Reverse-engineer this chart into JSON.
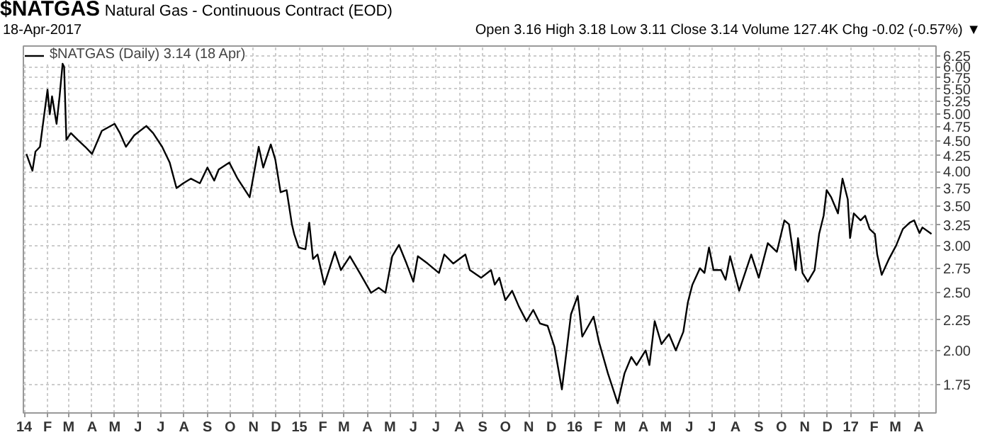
{
  "chart_data": {
    "type": "line",
    "title": "$NATGAS",
    "subtitle": "Natural Gas - Continuous Contract (EOD)",
    "annotations": [
      "18-Apr-2017",
      "Open 3.16 High 3.18 Low 3.11 Close 3.14 Volume 127.4K Chg -0.02 (-0.57%) ▼"
    ],
    "x": [
      "2014-01-04",
      "2014-01-12",
      "2014-01-16",
      "2014-01-22",
      "2014-01-26",
      "2014-02-01",
      "2014-02-04",
      "2014-02-07",
      "2014-02-13",
      "2014-02-17",
      "2014-02-21",
      "2014-02-23",
      "2014-02-26",
      "2014-03-04",
      "2014-03-13",
      "2014-03-23",
      "2014-04-01",
      "2014-04-14",
      "2014-05-01",
      "2014-05-08",
      "2014-05-16",
      "2014-05-27",
      "2014-06-12",
      "2014-06-21",
      "2014-07-03",
      "2014-07-13",
      "2014-07-22",
      "2014-07-31",
      "2014-08-10",
      "2014-08-22",
      "2014-09-01",
      "2014-09-10",
      "2014-09-16",
      "2014-09-30",
      "2014-10-11",
      "2014-10-27",
      "2014-11-08",
      "2014-11-14",
      "2014-11-24",
      "2014-11-30",
      "2014-12-07",
      "2014-12-15",
      "2014-12-22",
      "2014-12-25",
      "2014-12-31",
      "2015-01-09",
      "2015-01-14",
      "2015-01-19",
      "2015-01-25",
      "2015-02-03",
      "2015-02-17",
      "2015-02-25",
      "2015-03-09",
      "2015-03-22",
      "2015-04-06",
      "2015-04-16",
      "2015-04-25",
      "2015-05-04",
      "2015-05-13",
      "2015-05-23",
      "2015-06-01",
      "2015-06-07",
      "2015-06-20",
      "2015-07-05",
      "2015-07-12",
      "2015-07-24",
      "2015-08-09",
      "2015-08-15",
      "2015-08-30",
      "2015-09-12",
      "2015-09-17",
      "2015-09-23",
      "2015-10-01",
      "2015-10-10",
      "2015-10-19",
      "2015-10-29",
      "2015-11-07",
      "2015-11-16",
      "2015-11-26",
      "2015-12-05",
      "2015-12-15",
      "2015-12-27",
      "2016-01-05",
      "2016-01-11",
      "2016-01-26",
      "2016-02-02",
      "2016-02-14",
      "2016-02-27",
      "2016-03-07",
      "2016-03-16",
      "2016-03-23",
      "2016-04-04",
      "2016-04-09",
      "2016-04-16",
      "2016-04-25",
      "2016-05-05",
      "2016-05-14",
      "2016-05-24",
      "2016-05-30",
      "2016-06-05",
      "2016-06-15",
      "2016-06-21",
      "2016-06-27",
      "2016-07-03",
      "2016-07-13",
      "2016-07-19",
      "2016-07-25",
      "2016-08-06",
      "2016-08-22",
      "2016-09-01",
      "2016-09-13",
      "2016-09-25",
      "2016-10-05",
      "2016-10-11",
      "2016-10-20",
      "2016-10-23",
      "2016-10-29",
      "2016-11-05",
      "2016-11-14",
      "2016-11-20",
      "2016-11-26",
      "2016-11-30",
      "2016-12-06",
      "2016-12-15",
      "2016-12-21",
      "2016-12-28",
      "2016-12-31",
      "2017-01-05",
      "2017-01-14",
      "2017-01-20",
      "2017-01-26",
      "2017-02-02",
      "2017-02-05",
      "2017-02-11",
      "2017-02-20",
      "2017-03-02",
      "2017-03-11",
      "2017-03-20",
      "2017-03-26",
      "2017-04-02",
      "2017-04-06",
      "2017-04-18"
    ],
    "series": [
      {
        "name": "$NATGAS (Daily) 3.14 (18 Apr)",
        "color": "#000000",
        "values": [
          4.28,
          4.01,
          4.32,
          4.4,
          4.81,
          5.49,
          4.99,
          5.35,
          4.81,
          5.35,
          6.07,
          6.0,
          4.52,
          4.64,
          4.52,
          4.4,
          4.28,
          4.68,
          4.81,
          4.64,
          4.4,
          4.6,
          4.77,
          4.64,
          4.4,
          4.14,
          3.75,
          3.82,
          3.89,
          3.82,
          4.06,
          3.86,
          4.03,
          4.14,
          3.89,
          3.62,
          4.4,
          4.06,
          4.44,
          4.19,
          3.69,
          3.72,
          3.26,
          3.14,
          2.98,
          2.96,
          3.28,
          2.85,
          2.9,
          2.58,
          2.93,
          2.73,
          2.88,
          2.7,
          2.5,
          2.55,
          2.5,
          2.88,
          3.01,
          2.8,
          2.61,
          2.88,
          2.8,
          2.7,
          2.9,
          2.8,
          2.9,
          2.73,
          2.65,
          2.73,
          2.58,
          2.65,
          2.43,
          2.52,
          2.37,
          2.24,
          2.34,
          2.22,
          2.2,
          2.03,
          1.72,
          2.3,
          2.47,
          2.11,
          2.28,
          2.07,
          1.83,
          1.63,
          1.83,
          1.95,
          1.89,
          2.0,
          1.89,
          2.24,
          2.05,
          2.13,
          2.0,
          2.15,
          2.41,
          2.58,
          2.75,
          2.7,
          2.98,
          2.73,
          2.73,
          2.63,
          2.88,
          2.52,
          2.9,
          2.65,
          3.03,
          2.93,
          3.31,
          3.26,
          2.73,
          3.09,
          2.7,
          2.61,
          2.73,
          3.14,
          3.37,
          3.72,
          3.62,
          3.4,
          3.89,
          3.59,
          3.09,
          3.4,
          3.31,
          3.37,
          3.2,
          3.14,
          2.9,
          2.68,
          2.84,
          3.0,
          3.2,
          3.28,
          3.31,
          3.15,
          3.22,
          3.14
        ]
      }
    ],
    "xlim": [
      "2013-12-31",
      "2017-04-24"
    ],
    "xticks": [
      {
        "value": "2014-01",
        "label": "14"
      },
      {
        "value": "2014-02",
        "label": "F"
      },
      {
        "value": "2014-03",
        "label": "M"
      },
      {
        "value": "2014-04",
        "label": "A"
      },
      {
        "value": "2014-05",
        "label": "M"
      },
      {
        "value": "2014-06",
        "label": "J"
      },
      {
        "value": "2014-07",
        "label": "J"
      },
      {
        "value": "2014-08",
        "label": "A"
      },
      {
        "value": "2014-09",
        "label": "S"
      },
      {
        "value": "2014-10",
        "label": "O"
      },
      {
        "value": "2014-11",
        "label": "N"
      },
      {
        "value": "2014-12",
        "label": "D"
      },
      {
        "value": "2015-01",
        "label": "15"
      },
      {
        "value": "2015-02",
        "label": "F"
      },
      {
        "value": "2015-03",
        "label": "M"
      },
      {
        "value": "2015-04",
        "label": "A"
      },
      {
        "value": "2015-05",
        "label": "M"
      },
      {
        "value": "2015-06",
        "label": "J"
      },
      {
        "value": "2015-07",
        "label": "J"
      },
      {
        "value": "2015-08",
        "label": "A"
      },
      {
        "value": "2015-09",
        "label": "S"
      },
      {
        "value": "2015-10",
        "label": "O"
      },
      {
        "value": "2015-11",
        "label": "N"
      },
      {
        "value": "2015-12",
        "label": "D"
      },
      {
        "value": "2016-01",
        "label": "16"
      },
      {
        "value": "2016-02",
        "label": "F"
      },
      {
        "value": "2016-03",
        "label": "M"
      },
      {
        "value": "2016-04",
        "label": "A"
      },
      {
        "value": "2016-05",
        "label": "M"
      },
      {
        "value": "2016-06",
        "label": "J"
      },
      {
        "value": "2016-07",
        "label": "J"
      },
      {
        "value": "2016-08",
        "label": "A"
      },
      {
        "value": "2016-09",
        "label": "S"
      },
      {
        "value": "2016-10",
        "label": "O"
      },
      {
        "value": "2016-11",
        "label": "N"
      },
      {
        "value": "2016-12",
        "label": "D"
      },
      {
        "value": "2017-01",
        "label": "17"
      },
      {
        "value": "2017-02",
        "label": "F"
      },
      {
        "value": "2017-03",
        "label": "M"
      },
      {
        "value": "2017-04",
        "label": "A"
      }
    ],
    "ylim": [
      1.57,
      6.5
    ],
    "yticks": [
      1.75,
      {
        "value": 2,
        "label": "2.00"
      },
      2.25,
      {
        "value": 2.5,
        "label": "2.50"
      },
      2.75,
      {
        "value": 3,
        "label": "3.00"
      },
      3.25,
      {
        "value": 3.5,
        "label": "3.50"
      },
      3.75,
      {
        "value": 4,
        "label": "4.00"
      },
      4.25,
      {
        "value": 4.5,
        "label": "4.50"
      },
      4.75,
      {
        "value": 5,
        "label": "5.00"
      },
      5.25,
      {
        "value": 5.5,
        "label": "5.50"
      },
      5.75,
      {
        "value": 6,
        "label": "6.00"
      },
      6.25
    ],
    "log": "y",
    "grid": true,
    "legend": "top left",
    "line_style": "solid"
  }
}
